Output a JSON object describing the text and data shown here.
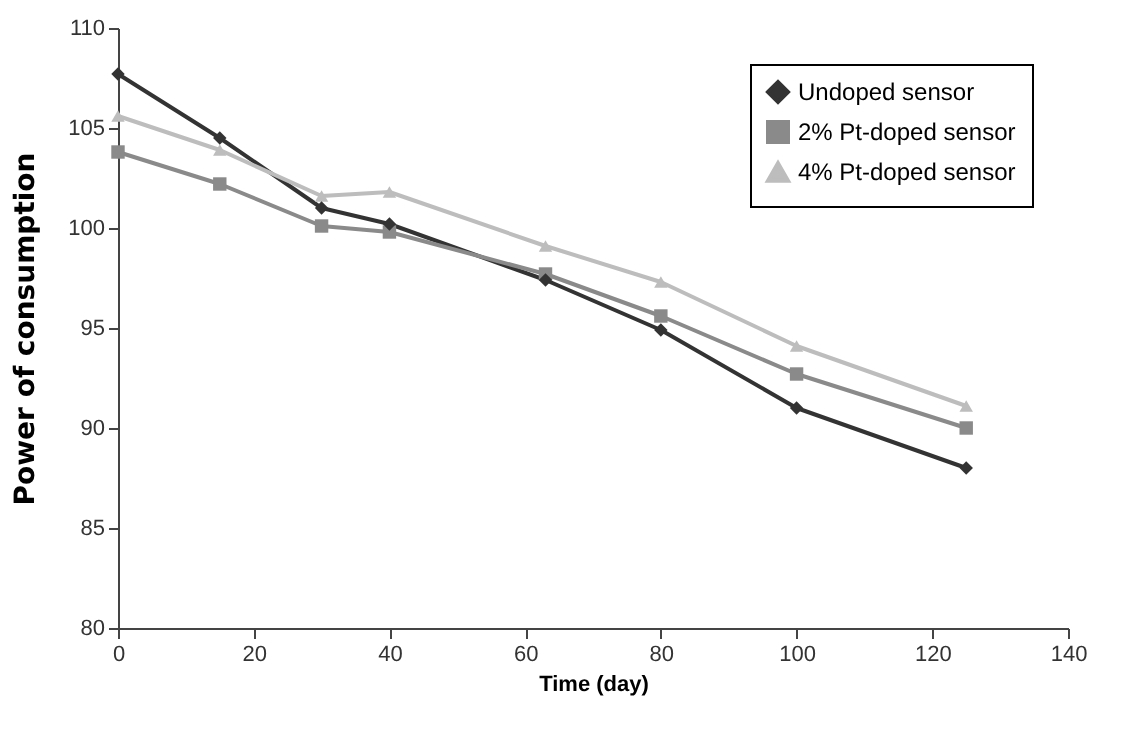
{
  "chart_data": {
    "type": "line",
    "xlabel": "Time (day)",
    "ylabel": "Power of consumption",
    "x": [
      0,
      15,
      30,
      40,
      63,
      80,
      100,
      125
    ],
    "series": [
      {
        "name": "Undoped sensor",
        "color": "#333333",
        "marker": "diamond",
        "values": [
          107.7,
          104.5,
          101,
          100.2,
          97.4,
          94.9,
          91,
          88
        ]
      },
      {
        "name": "2% Pt-doped sensor",
        "color": "#8a8a8a",
        "marker": "square",
        "values": [
          103.8,
          102.2,
          100.1,
          99.8,
          97.7,
          95.6,
          92.7,
          90
        ]
      },
      {
        "name": "4% Pt-doped sensor",
        "color": "#bdbdbd",
        "marker": "triangle",
        "values": [
          105.6,
          103.9,
          101.6,
          101.8,
          99.1,
          97.3,
          94.1,
          91.1
        ]
      }
    ],
    "xlim": [
      0,
      140
    ],
    "xticks": [
      0,
      20,
      40,
      60,
      80,
      100,
      120,
      140
    ],
    "ylim": [
      80,
      110
    ],
    "yticks": [
      80,
      85,
      90,
      95,
      100,
      105,
      110
    ],
    "grid": false,
    "legend": "top right"
  }
}
